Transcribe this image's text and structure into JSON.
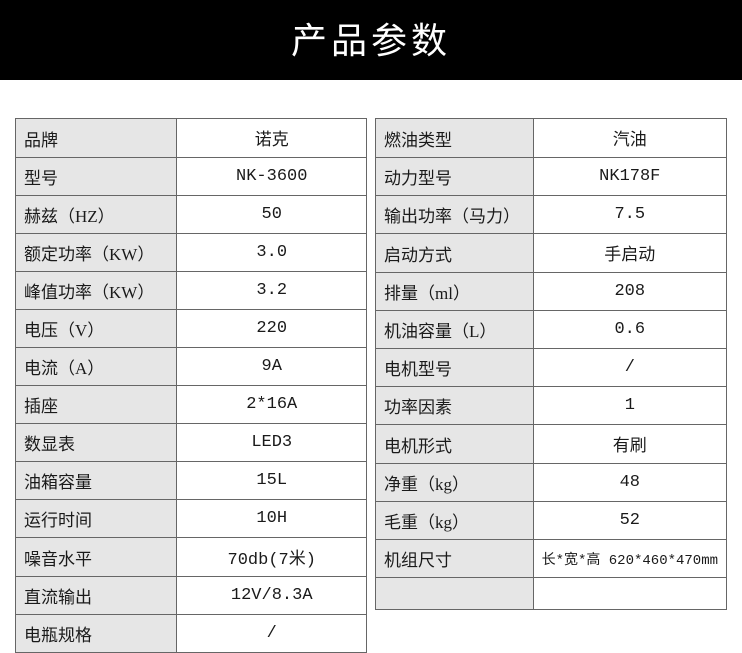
{
  "title": "产品参数",
  "left": [
    {
      "label": "品牌",
      "value": "诺克"
    },
    {
      "label": "型号",
      "value": "NK-3600"
    },
    {
      "label": "赫兹（HZ）",
      "value": "50"
    },
    {
      "label": "额定功率（KW）",
      "value": "3.0"
    },
    {
      "label": "峰值功率（KW）",
      "value": "3.2"
    },
    {
      "label": "电压（V）",
      "value": "220"
    },
    {
      "label": "电流（A）",
      "value": "9A"
    },
    {
      "label": "插座",
      "value": "2*16A"
    },
    {
      "label": "数显表",
      "value": "LED3"
    },
    {
      "label": "油箱容量",
      "value": "15L"
    },
    {
      "label": "运行时间",
      "value": "10H"
    },
    {
      "label": "噪音水平",
      "value": "70db(7米)"
    },
    {
      "label": "直流输出",
      "value": "12V/8.3A"
    },
    {
      "label": "电瓶规格",
      "value": "/"
    }
  ],
  "right": [
    {
      "label": "燃油类型",
      "value": "汽油"
    },
    {
      "label": "动力型号",
      "value": "NK178F"
    },
    {
      "label": "输出功率（马力）",
      "value": "7.5"
    },
    {
      "label": "启动方式",
      "value": "手启动"
    },
    {
      "label": "排量（ml）",
      "value": "208"
    },
    {
      "label": "机油容量（L）",
      "value": "0.6"
    },
    {
      "label": "电机型号",
      "value": "/"
    },
    {
      "label": "功率因素",
      "value": "1"
    },
    {
      "label": "电机形式",
      "value": "有刷"
    },
    {
      "label": "净重（kg）",
      "value": "48"
    },
    {
      "label": "毛重（kg）",
      "value": "52"
    },
    {
      "label": "机组尺寸",
      "value": "长*宽*高 620*460*470mm",
      "small": true
    },
    {
      "label": "",
      "value": ""
    }
  ]
}
